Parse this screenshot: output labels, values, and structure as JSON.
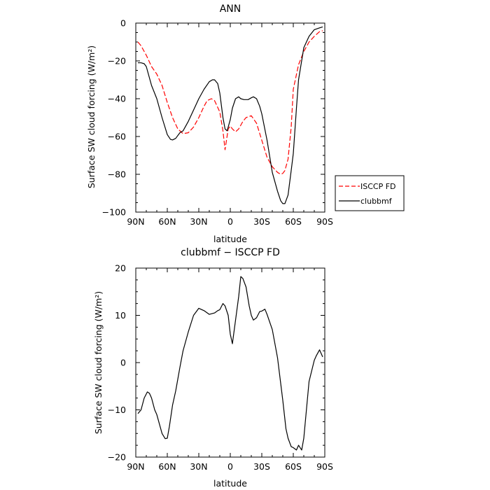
{
  "chart_data": [
    {
      "type": "line",
      "title": "ANN",
      "xlabel": "latitude",
      "ylabel": "Surface SW cloud forcing (W/m²)",
      "xlim": [
        90,
        -90
      ],
      "ylim": [
        -100,
        0
      ],
      "xticks": [
        90,
        60,
        30,
        0,
        -30,
        -60,
        -90
      ],
      "xticklabels": [
        "90N",
        "60N",
        "30N",
        "0",
        "30S",
        "60S",
        "90S"
      ],
      "yticks": [
        -100,
        -80,
        -60,
        -40,
        -20,
        0
      ],
      "yticklabels": [
        "−100",
        "−80",
        "−60",
        "−40",
        "−20",
        "0"
      ],
      "legend": {
        "placement": "right"
      },
      "series": [
        {
          "name": "ISCCP FD",
          "color": "#ff0000",
          "dash": "dashed",
          "x": [
            88,
            85,
            80,
            75,
            70,
            65,
            60,
            55,
            50,
            45,
            40,
            35,
            30,
            25,
            22,
            18,
            15,
            10,
            7,
            5,
            2,
            0,
            -2,
            -5,
            -8,
            -12,
            -15,
            -20,
            -25,
            -30,
            -35,
            -40,
            -45,
            -48,
            -50,
            -52,
            -55,
            -58,
            -60,
            -65,
            -70,
            -75,
            -80,
            -85,
            -88
          ],
          "y": [
            -10,
            -12,
            -17,
            -23,
            -27,
            -33,
            -42,
            -50,
            -56,
            -58.5,
            -58,
            -55,
            -50,
            -44,
            -41,
            -40,
            -41,
            -47,
            -57,
            -67,
            -56,
            -54.5,
            -56,
            -57.5,
            -56,
            -52,
            -50,
            -49,
            -53,
            -62,
            -71,
            -76,
            -79,
            -80,
            -79.5,
            -78,
            -72,
            -55,
            -35,
            -22,
            -15,
            -10,
            -7,
            -4.5,
            -4
          ]
        },
        {
          "name": "clubbmf",
          "color": "#000000",
          "dash": "solid",
          "x": [
            88,
            85,
            82,
            80,
            75,
            70,
            65,
            60,
            57,
            55,
            52,
            48,
            45,
            40,
            35,
            30,
            25,
            20,
            17,
            15,
            12,
            10,
            7,
            5,
            3,
            0,
            -2,
            -5,
            -8,
            -10,
            -13,
            -17,
            -20,
            -22,
            -25,
            -28,
            -30,
            -35,
            -40,
            -45,
            -48,
            -50,
            -52,
            -55,
            -58,
            -60,
            -63,
            -65,
            -70,
            -75,
            -80,
            -85,
            -88
          ],
          "y": [
            -21,
            -21,
            -21.5,
            -23,
            -33,
            -40,
            -50,
            -59,
            -61.5,
            -61.8,
            -61,
            -58,
            -57,
            -52,
            -46,
            -40,
            -35,
            -31,
            -30,
            -30,
            -32,
            -37,
            -50,
            -56,
            -57,
            -51,
            -45,
            -40,
            -39,
            -40,
            -40.5,
            -40.5,
            -39.5,
            -39,
            -40,
            -44,
            -48,
            -62,
            -79,
            -89,
            -94,
            -95.5,
            -95.5,
            -91,
            -78,
            -69,
            -45,
            -30,
            -13,
            -7,
            -3.5,
            -2.5,
            -2
          ]
        }
      ]
    },
    {
      "type": "line",
      "title": "clubbmf − ISCCP FD",
      "xlabel": "latitude",
      "ylabel": "Surface SW cloud forcing (W/m²)",
      "xlim": [
        90,
        -90
      ],
      "ylim": [
        -20,
        20
      ],
      "xticks": [
        90,
        60,
        30,
        0,
        -30,
        -60,
        -90
      ],
      "xticklabels": [
        "90N",
        "60N",
        "30N",
        "0",
        "30S",
        "60S",
        "90S"
      ],
      "yticks": [
        -20,
        -10,
        0,
        10,
        20
      ],
      "yticklabels": [
        "−20",
        "−10",
        "0",
        "10",
        "20"
      ],
      "series": [
        {
          "color": "#000000",
          "dash": "solid",
          "x": [
            88,
            85,
            82,
            79,
            77,
            75,
            72,
            70,
            65,
            62,
            60,
            58,
            55,
            52,
            48,
            45,
            40,
            35,
            30,
            25,
            20,
            15,
            12,
            10,
            7,
            5,
            2,
            0,
            -2,
            -5,
            -8,
            -10,
            -12,
            -15,
            -18,
            -20,
            -22,
            -25,
            -28,
            -30,
            -33,
            -35,
            -40,
            -45,
            -50,
            -53,
            -55,
            -58,
            -60,
            -63,
            -65,
            -68,
            -70,
            -75,
            -80,
            -82,
            -85,
            -88
          ],
          "y": [
            -10.8,
            -10,
            -7.5,
            -6.2,
            -6.5,
            -7.5,
            -10,
            -11,
            -15,
            -16.1,
            -16,
            -13.5,
            -9,
            -6,
            -1,
            2.5,
            6.5,
            10,
            11.5,
            11,
            10.2,
            10.5,
            11,
            11.2,
            12.5,
            12,
            10,
            6,
            4,
            9,
            14,
            18.2,
            17.8,
            16,
            12,
            10,
            9,
            9.5,
            10.8,
            10.9,
            11.3,
            10.2,
            7,
            1,
            -8,
            -14,
            -16,
            -17.8,
            -18,
            -18.5,
            -17.5,
            -18.5,
            -16,
            -4,
            0.5,
            1.5,
            2.7,
            1.2
          ]
        }
      ]
    }
  ]
}
